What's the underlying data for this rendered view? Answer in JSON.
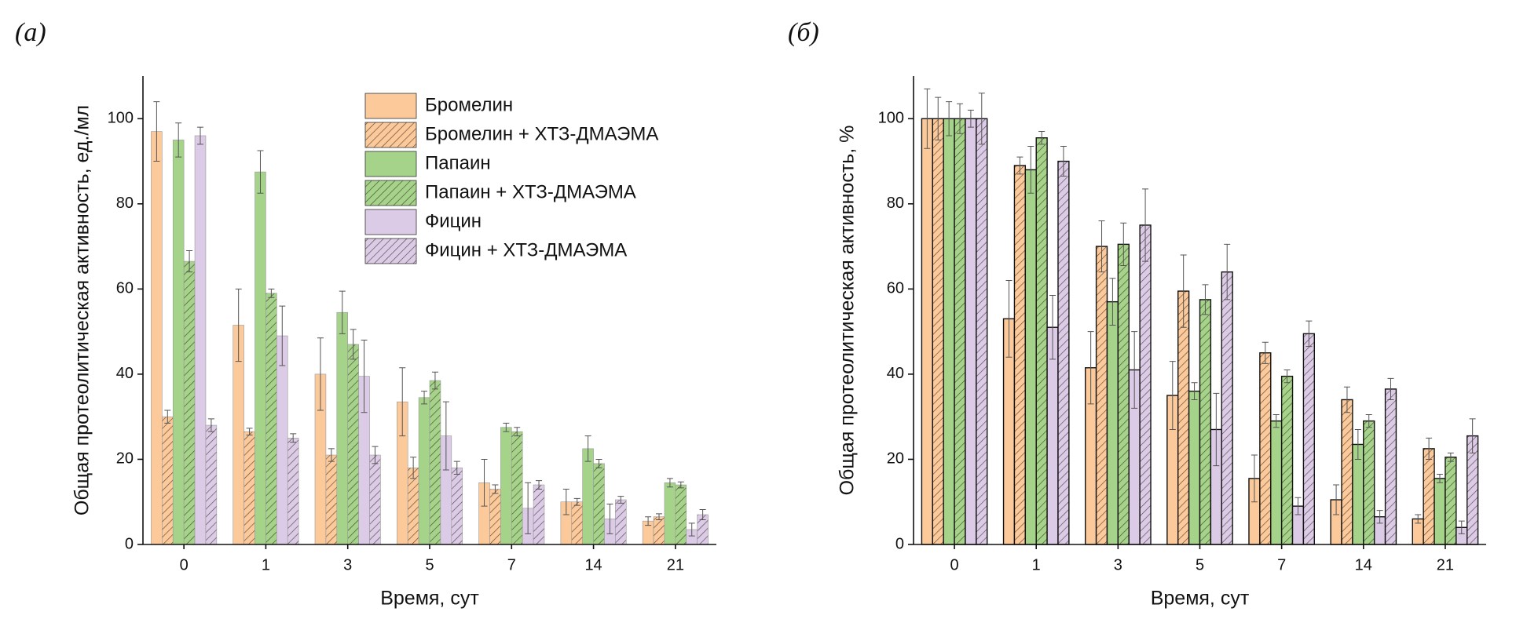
{
  "chart_data": [
    {
      "type": "bar",
      "label": "(а)",
      "ylabel": "Общая протеолитическая активность, ед./мл",
      "xlabel": "Время, сут",
      "categories": [
        "0",
        "1",
        "3",
        "5",
        "7",
        "14",
        "21"
      ],
      "ylim": [
        0,
        110
      ],
      "yticks": [
        0,
        20,
        40,
        60,
        80,
        100
      ],
      "legend": "upper right",
      "series": [
        {
          "name": "Бромелин",
          "color": "#fcc99a",
          "hatch": false,
          "values": [
            97,
            51.5,
            40,
            33.5,
            14.5,
            10,
            5.5
          ],
          "errors": [
            7,
            8.5,
            8.5,
            8,
            5.5,
            3,
            1
          ]
        },
        {
          "name": "Бромелин + ХТЗ-ДМАЭМА",
          "color": "#fcc99a",
          "hatch": true,
          "values": [
            30,
            26.5,
            21,
            18,
            13,
            10,
            6.5
          ],
          "errors": [
            1.5,
            0.8,
            1.5,
            2.5,
            1,
            0.8,
            0.7
          ]
        },
        {
          "name": "Папаин",
          "color": "#a6d38a",
          "hatch": false,
          "values": [
            95,
            87.5,
            54.5,
            34.5,
            27.5,
            22.5,
            14.5
          ],
          "errors": [
            4,
            5,
            5,
            1.5,
            1,
            3,
            1
          ]
        },
        {
          "name": "Папаин + ХТЗ-ДМАЭМА",
          "color": "#a6d38a",
          "hatch": true,
          "values": [
            66.5,
            59,
            47,
            38.5,
            26.5,
            19,
            14
          ],
          "errors": [
            2.5,
            1,
            3.5,
            2,
            1,
            1,
            0.7
          ]
        },
        {
          "name": "Фицин",
          "color": "#dccbe6",
          "hatch": false,
          "values": [
            96,
            49,
            39.5,
            25.5,
            8.5,
            6,
            3.5
          ],
          "errors": [
            2,
            7,
            8.5,
            8,
            6,
            3.5,
            1.5
          ]
        },
        {
          "name": "Фицин + ХТЗ-ДМАЭМА",
          "color": "#dccbe6",
          "hatch": true,
          "values": [
            28,
            25,
            21,
            18,
            14,
            10.5,
            7
          ],
          "errors": [
            1.5,
            1,
            2,
            1.5,
            1,
            0.8,
            1.2
          ]
        }
      ]
    },
    {
      "type": "bar",
      "label": "(б)",
      "ylabel": "Общая протеолитическая активность, %",
      "xlabel": "Время, сут",
      "categories": [
        "0",
        "1",
        "3",
        "5",
        "7",
        "14",
        "21"
      ],
      "ylim": [
        0,
        110
      ],
      "yticks": [
        0,
        20,
        40,
        60,
        80,
        100
      ],
      "series": [
        {
          "color": "#fcc99a",
          "hatch": false,
          "values": [
            100,
            53,
            41.5,
            35,
            15.5,
            10.5,
            6
          ],
          "errors": [
            7,
            9,
            8.5,
            8,
            5.5,
            3.5,
            1
          ]
        },
        {
          "color": "#fcc99a",
          "hatch": true,
          "values": [
            100,
            89,
            70,
            59.5,
            45,
            34,
            22.5
          ],
          "errors": [
            5,
            2,
            6,
            8.5,
            2.5,
            3,
            2.5
          ]
        },
        {
          "color": "#a6d38a",
          "hatch": false,
          "values": [
            100,
            88,
            57,
            36,
            29,
            23.5,
            15.5
          ],
          "errors": [
            4,
            5.5,
            5.5,
            2,
            1.5,
            3.5,
            1
          ]
        },
        {
          "color": "#a6d38a",
          "hatch": true,
          "values": [
            100,
            95.5,
            70.5,
            57.5,
            39.5,
            29,
            20.5
          ],
          "errors": [
            3.5,
            1.5,
            5,
            3.5,
            1.5,
            1.5,
            1
          ]
        },
        {
          "color": "#dccbe6",
          "hatch": false,
          "values": [
            100,
            51,
            41,
            27,
            9,
            6.5,
            4
          ],
          "errors": [
            2,
            7.5,
            9,
            8.5,
            2,
            1.5,
            1.5
          ]
        },
        {
          "color": "#dccbe6",
          "hatch": true,
          "values": [
            100,
            90,
            75,
            64,
            49.5,
            36.5,
            25.5
          ],
          "errors": [
            6,
            3.5,
            8.5,
            6.5,
            3,
            2.5,
            4
          ]
        }
      ]
    }
  ]
}
